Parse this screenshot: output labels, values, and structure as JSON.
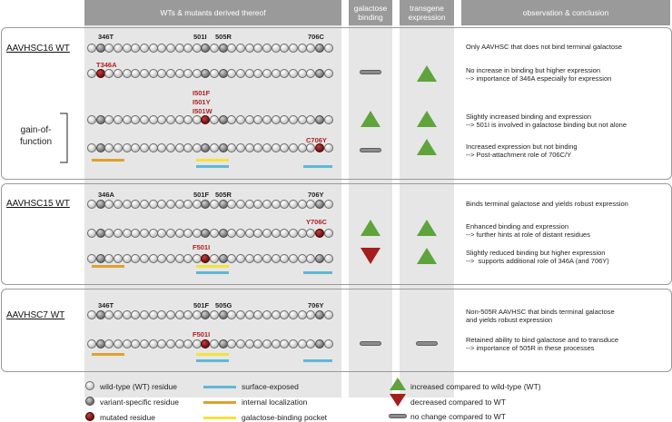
{
  "headers": {
    "wts": "WTs & mutants derived thereof",
    "galactose": "galactose\nbinding",
    "transgene": "transgene\nexpression",
    "observation": "observation & conclusion"
  },
  "gain_of_function": "gain-of-\nfunction",
  "panels": [
    {
      "name": "AAVHSC16 WT",
      "positions": [
        "346T",
        "501I",
        "505R",
        "706C"
      ],
      "rows": [
        {
          "mutations": [],
          "galactose": null,
          "transgene": null,
          "observation": "Only AAVHSC that does not bind terminal galactose"
        },
        {
          "mutations": [
            "T346A"
          ],
          "galactose": "no-change",
          "transgene": "increased",
          "observation": "No increase in binding but higher expression\n--> importance of 346A especially for expression"
        },
        {
          "mutations": [
            "I501F",
            "I501Y",
            "I501W"
          ],
          "galactose": "increased",
          "transgene": "increased",
          "observation": "Slightly increased binding and expression\n--> 501I is involved in galactose binding but not alone"
        },
        {
          "mutations": [
            "C706Y"
          ],
          "galactose": "no-change",
          "transgene": "increased",
          "observation": "Increased expression but not binding\n--> Post-attachment role of 706C/Y"
        }
      ]
    },
    {
      "name": "AAVHSC15 WT",
      "positions": [
        "346A",
        "501F",
        "505R",
        "706Y"
      ],
      "rows": [
        {
          "mutations": [],
          "galactose": null,
          "transgene": null,
          "observation": "Binds terminal galactose and yields robust expression"
        },
        {
          "mutations": [
            "Y706C"
          ],
          "galactose": "increased",
          "transgene": "increased",
          "observation": "Enhanced binding and expression\n--> further hints at role of distant residues"
        },
        {
          "mutations": [
            "F501I"
          ],
          "galactose": "decreased",
          "transgene": "increased",
          "observation": "Slightly reduced binding but higher expression\n-->  supports additional role of 346A (and 706Y)"
        }
      ]
    },
    {
      "name": "AAVHSC7 WT",
      "positions": [
        "346T",
        "501F",
        "505G",
        "706Y"
      ],
      "rows": [
        {
          "mutations": [],
          "galactose": null,
          "transgene": null,
          "observation": "Non-505R AAVHSC that binds terminal galactose\nand yields robust expression"
        },
        {
          "mutations": [
            "F501I"
          ],
          "galactose": "no-change",
          "transgene": "no-change",
          "observation": "Retained ability to bind galactose and to transduce\n--> importance of 505R in these processes"
        }
      ]
    }
  ],
  "legend": {
    "wt_residue": "wild-type (WT) residue",
    "variant_residue": "variant-specific residue",
    "mutated_residue": "mutated residue",
    "surface": "surface-exposed",
    "internal": "internal localization",
    "pocket": "galactose-binding pocket",
    "increased": "increased compared to wild-type (WT)",
    "decreased": "decreased compared to WT",
    "no_change": "no change compared to WT"
  },
  "colors": {
    "surface": "#5fb8d4",
    "internal": "#e0a030",
    "pocket": "#f4e23a",
    "increased": "#5fa33c",
    "decreased": "#a51d1d",
    "no_change": "#8c8c8c",
    "mutated": "#8d1c1c"
  }
}
